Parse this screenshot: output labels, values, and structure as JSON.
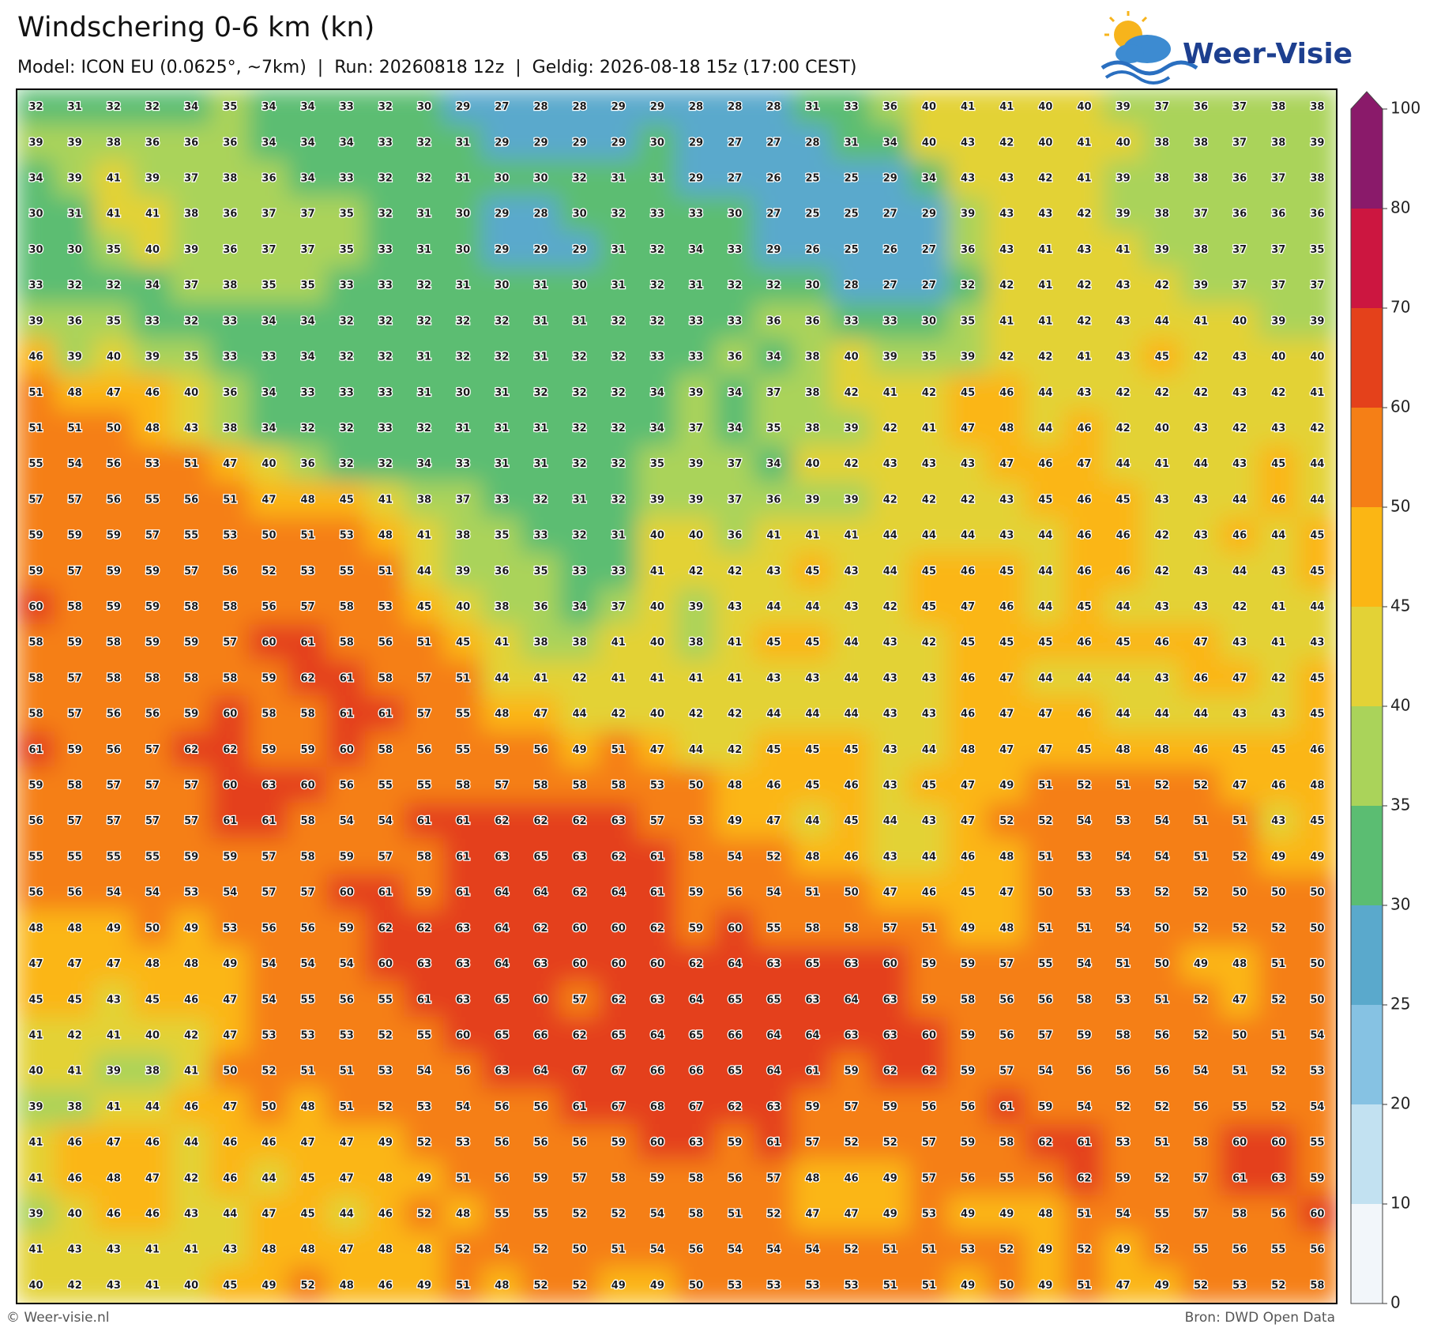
{
  "header": {
    "title": "Windschering 0-6 km (kn)",
    "subtitle": "Model: ICON EU (0.0625°, ~7km)  |  Run: 20260818 12z  |  Geldig: 2026-08-18 15z (17:00 CEST)"
  },
  "logo": {
    "text": "Weer-Visie"
  },
  "grid": {
    "rows": [
      [
        32,
        31,
        32,
        32,
        34,
        35,
        34,
        34,
        33,
        32,
        30,
        29,
        27,
        28,
        28,
        29,
        29,
        28,
        28,
        28,
        31,
        33,
        36,
        40,
        41,
        41,
        40,
        40,
        39,
        37,
        36,
        37,
        38,
        38
      ],
      [
        39,
        39,
        38,
        36,
        36,
        36,
        34,
        34,
        34,
        33,
        32,
        31,
        29,
        29,
        29,
        29,
        30,
        29,
        27,
        27,
        28,
        31,
        34,
        40,
        43,
        42,
        40,
        41,
        40,
        38,
        38,
        37,
        38,
        39
      ],
      [
        34,
        39,
        41,
        39,
        37,
        38,
        36,
        34,
        33,
        32,
        32,
        31,
        30,
        30,
        32,
        31,
        31,
        29,
        27,
        26,
        25,
        25,
        29,
        34,
        43,
        43,
        42,
        41,
        39,
        38,
        38,
        36,
        37,
        38
      ],
      [
        30,
        31,
        41,
        41,
        38,
        36,
        37,
        37,
        35,
        32,
        31,
        30,
        29,
        28,
        30,
        32,
        33,
        33,
        30,
        27,
        25,
        25,
        27,
        29,
        39,
        43,
        43,
        42,
        39,
        38,
        37,
        36,
        36,
        36
      ],
      [
        30,
        30,
        35,
        40,
        39,
        36,
        37,
        37,
        35,
        33,
        31,
        30,
        29,
        29,
        29,
        31,
        32,
        34,
        33,
        29,
        26,
        25,
        26,
        27,
        36,
        43,
        41,
        43,
        41,
        39,
        38,
        37,
        37,
        35
      ],
      [
        33,
        32,
        32,
        34,
        37,
        38,
        35,
        35,
        33,
        33,
        32,
        31,
        30,
        31,
        30,
        31,
        32,
        31,
        32,
        32,
        30,
        28,
        27,
        27,
        32,
        42,
        41,
        42,
        43,
        42,
        39,
        37,
        37,
        37
      ],
      [
        39,
        36,
        35,
        33,
        32,
        33,
        34,
        34,
        32,
        32,
        32,
        32,
        32,
        31,
        31,
        32,
        32,
        33,
        33,
        36,
        36,
        33,
        33,
        30,
        35,
        41,
        41,
        42,
        43,
        44,
        41,
        40,
        39,
        39
      ],
      [
        46,
        39,
        40,
        39,
        35,
        33,
        33,
        34,
        32,
        32,
        31,
        32,
        32,
        31,
        32,
        32,
        33,
        33,
        36,
        34,
        38,
        40,
        39,
        35,
        39,
        42,
        42,
        41,
        43,
        45,
        42,
        43,
        40,
        40
      ],
      [
        51,
        48,
        47,
        46,
        40,
        36,
        34,
        33,
        33,
        33,
        31,
        30,
        31,
        32,
        32,
        32,
        34,
        39,
        34,
        37,
        38,
        42,
        41,
        42,
        45,
        46,
        44,
        43,
        42,
        42,
        42,
        43,
        42,
        41
      ],
      [
        51,
        51,
        50,
        48,
        43,
        38,
        34,
        32,
        32,
        33,
        32,
        31,
        31,
        31,
        32,
        32,
        34,
        37,
        34,
        35,
        38,
        39,
        42,
        41,
        47,
        48,
        44,
        46,
        42,
        40,
        43,
        42,
        43,
        42
      ],
      [
        55,
        54,
        56,
        53,
        51,
        47,
        40,
        36,
        32,
        32,
        34,
        33,
        31,
        31,
        32,
        32,
        35,
        39,
        37,
        34,
        40,
        42,
        43,
        43,
        43,
        47,
        46,
        47,
        44,
        41,
        44,
        43,
        45,
        44
      ],
      [
        57,
        57,
        56,
        55,
        56,
        51,
        47,
        48,
        45,
        41,
        38,
        37,
        33,
        32,
        31,
        32,
        39,
        39,
        37,
        36,
        39,
        39,
        42,
        42,
        42,
        43,
        45,
        46,
        45,
        43,
        43,
        44,
        46,
        44
      ],
      [
        59,
        59,
        59,
        57,
        55,
        53,
        50,
        51,
        53,
        48,
        41,
        38,
        35,
        33,
        32,
        31,
        40,
        40,
        36,
        41,
        41,
        41,
        44,
        44,
        44,
        43,
        44,
        46,
        46,
        42,
        43,
        46,
        44,
        45
      ],
      [
        59,
        57,
        59,
        59,
        57,
        56,
        52,
        53,
        55,
        51,
        44,
        39,
        36,
        35,
        33,
        33,
        41,
        42,
        42,
        43,
        45,
        43,
        44,
        45,
        46,
        45,
        44,
        46,
        46,
        42,
        43,
        44,
        43,
        45
      ],
      [
        60,
        58,
        59,
        59,
        58,
        58,
        56,
        57,
        58,
        53,
        45,
        40,
        38,
        36,
        34,
        37,
        40,
        39,
        43,
        44,
        44,
        43,
        42,
        45,
        47,
        46,
        44,
        45,
        44,
        43,
        43,
        42,
        41,
        44
      ],
      [
        58,
        59,
        58,
        59,
        59,
        57,
        60,
        61,
        58,
        56,
        51,
        45,
        41,
        38,
        38,
        41,
        40,
        38,
        41,
        45,
        45,
        44,
        43,
        42,
        45,
        45,
        45,
        46,
        45,
        46,
        47,
        43,
        41,
        43
      ],
      [
        58,
        57,
        58,
        58,
        58,
        58,
        59,
        62,
        61,
        58,
        57,
        51,
        44,
        41,
        42,
        41,
        41,
        41,
        41,
        43,
        43,
        44,
        43,
        43,
        46,
        47,
        44,
        44,
        44,
        43,
        46,
        47,
        42,
        45
      ],
      [
        58,
        57,
        56,
        56,
        59,
        60,
        58,
        58,
        61,
        61,
        57,
        55,
        48,
        47,
        44,
        42,
        40,
        42,
        42,
        44,
        44,
        44,
        43,
        43,
        46,
        47,
        47,
        46,
        44,
        44,
        44,
        43,
        43,
        45
      ],
      [
        61,
        59,
        56,
        57,
        62,
        62,
        59,
        59,
        60,
        58,
        56,
        55,
        59,
        56,
        49,
        51,
        47,
        44,
        42,
        45,
        45,
        45,
        43,
        44,
        48,
        47,
        47,
        45,
        48,
        48,
        46,
        45,
        45,
        46
      ],
      [
        59,
        58,
        57,
        57,
        57,
        60,
        63,
        60,
        56,
        55,
        55,
        58,
        57,
        58,
        58,
        58,
        53,
        50,
        48,
        46,
        45,
        46,
        43,
        45,
        47,
        49,
        51,
        52,
        51,
        52,
        52,
        47,
        46,
        48
      ],
      [
        56,
        57,
        57,
        57,
        57,
        61,
        61,
        58,
        54,
        54,
        61,
        61,
        62,
        62,
        62,
        63,
        57,
        53,
        49,
        47,
        44,
        45,
        44,
        43,
        47,
        52,
        52,
        54,
        53,
        54,
        51,
        51,
        43,
        45
      ],
      [
        55,
        55,
        55,
        55,
        59,
        59,
        57,
        58,
        59,
        57,
        58,
        61,
        63,
        65,
        63,
        62,
        61,
        58,
        54,
        52,
        48,
        46,
        43,
        44,
        46,
        48,
        51,
        53,
        54,
        54,
        51,
        52,
        49,
        49
      ],
      [
        56,
        56,
        54,
        54,
        53,
        54,
        57,
        57,
        60,
        61,
        59,
        61,
        64,
        64,
        62,
        64,
        61,
        59,
        56,
        54,
        51,
        50,
        47,
        46,
        45,
        47,
        50,
        53,
        53,
        52,
        52,
        50,
        50,
        50
      ],
      [
        48,
        48,
        49,
        50,
        49,
        53,
        56,
        56,
        59,
        62,
        62,
        63,
        64,
        62,
        60,
        60,
        62,
        59,
        60,
        55,
        58,
        58,
        57,
        51,
        49,
        48,
        51,
        51,
        54,
        50,
        52,
        52,
        52,
        50
      ],
      [
        47,
        47,
        47,
        48,
        48,
        49,
        54,
        54,
        54,
        60,
        63,
        63,
        64,
        63,
        60,
        60,
        60,
        62,
        64,
        63,
        65,
        63,
        60,
        59,
        59,
        57,
        55,
        54,
        51,
        50,
        49,
        48,
        51,
        50
      ],
      [
        45,
        45,
        43,
        45,
        46,
        47,
        54,
        55,
        56,
        55,
        61,
        63,
        65,
        60,
        57,
        62,
        63,
        64,
        65,
        65,
        63,
        64,
        63,
        59,
        58,
        56,
        56,
        58,
        53,
        51,
        52,
        47,
        52,
        50
      ],
      [
        41,
        42,
        41,
        40,
        42,
        47,
        53,
        53,
        53,
        52,
        55,
        60,
        65,
        66,
        62,
        65,
        64,
        65,
        66,
        64,
        64,
        63,
        63,
        60,
        59,
        56,
        57,
        59,
        58,
        56,
        52,
        50,
        51,
        54
      ],
      [
        40,
        41,
        39,
        38,
        41,
        50,
        52,
        51,
        51,
        53,
        54,
        56,
        63,
        64,
        67,
        67,
        66,
        66,
        65,
        64,
        61,
        59,
        62,
        62,
        59,
        57,
        54,
        56,
        56,
        56,
        54,
        51,
        52,
        53
      ],
      [
        39,
        38,
        41,
        44,
        46,
        47,
        50,
        48,
        51,
        52,
        53,
        54,
        56,
        56,
        61,
        67,
        68,
        67,
        62,
        63,
        59,
        57,
        59,
        56,
        56,
        61,
        59,
        54,
        52,
        52,
        56,
        55,
        52,
        54
      ],
      [
        41,
        46,
        47,
        46,
        44,
        46,
        46,
        47,
        47,
        49,
        52,
        53,
        56,
        56,
        56,
        59,
        60,
        63,
        59,
        61,
        57,
        52,
        52,
        57,
        59,
        58,
        62,
        61,
        53,
        51,
        58,
        60,
        60,
        55
      ],
      [
        41,
        46,
        48,
        47,
        42,
        46,
        44,
        45,
        47,
        48,
        49,
        51,
        56,
        59,
        57,
        58,
        59,
        58,
        56,
        57,
        48,
        46,
        49,
        57,
        56,
        55,
        56,
        62,
        59,
        52,
        57,
        61,
        63,
        59
      ],
      [
        39,
        40,
        46,
        46,
        43,
        44,
        47,
        45,
        44,
        46,
        52,
        48,
        55,
        55,
        52,
        52,
        54,
        58,
        51,
        52,
        47,
        47,
        49,
        53,
        49,
        49,
        48,
        51,
        54,
        55,
        57,
        58,
        56,
        60
      ],
      [
        41,
        43,
        43,
        41,
        41,
        43,
        48,
        48,
        47,
        48,
        48,
        52,
        54,
        52,
        50,
        51,
        54,
        56,
        54,
        54,
        54,
        52,
        51,
        51,
        53,
        52,
        49,
        52,
        49,
        52,
        55,
        56,
        55,
        56
      ],
      [
        40,
        42,
        43,
        41,
        40,
        45,
        49,
        52,
        48,
        46,
        49,
        51,
        48,
        52,
        52,
        49,
        49,
        50,
        53,
        53,
        53,
        53,
        51,
        51,
        49,
        50,
        49,
        51,
        47,
        49,
        52,
        53,
        52,
        58
      ]
    ]
  },
  "colorbar": {
    "ticks": [
      0,
      10,
      20,
      25,
      30,
      35,
      40,
      45,
      50,
      60,
      70,
      80,
      100
    ],
    "colors": [
      "#f2f6fa",
      "#c2e1f1",
      "#86c2e3",
      "#5aa9cc",
      "#5bbd72",
      "#aad35a",
      "#e3d236",
      "#fbb614",
      "#f57f16",
      "#e4411b",
      "#cc1640",
      "#8a1a6a"
    ]
  },
  "footer": {
    "left": "© Weer-visie.nl",
    "right": "Bron: DWD Open Data"
  }
}
